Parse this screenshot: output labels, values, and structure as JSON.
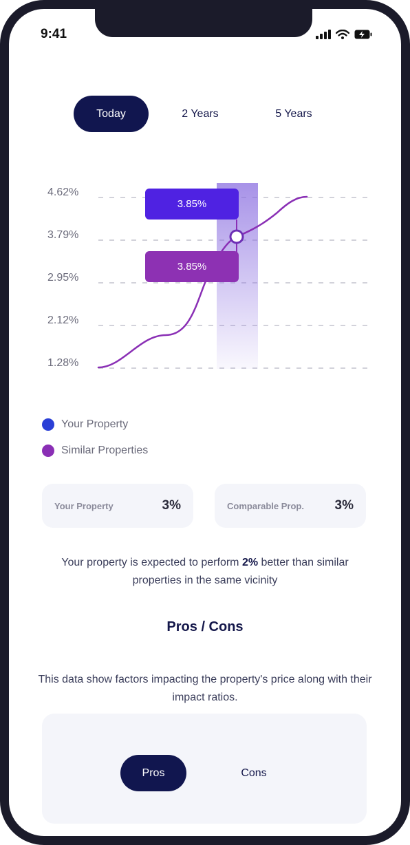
{
  "status_bar": {
    "time": "9:41",
    "icons": [
      "signal-icon",
      "wifi-icon",
      "battery-charging-icon"
    ]
  },
  "period_tabs": [
    {
      "label": "Today",
      "active": true
    },
    {
      "label": "2 Years",
      "active": false
    },
    {
      "label": "5 Years",
      "active": false
    }
  ],
  "chart_data": {
    "type": "line",
    "y_ticks": [
      "4.62%",
      "3.79%",
      "2.95%",
      "2.12%",
      "1.28%"
    ],
    "ylim": [
      1.28,
      4.62
    ],
    "grid": true,
    "highlight_tooltips": [
      {
        "value": "3.85%",
        "series": "Your Property"
      },
      {
        "value": "3.85%",
        "series": "Similar Properties"
      }
    ],
    "series": [
      {
        "name": "Similar Properties",
        "color": "#8a2fb5",
        "points": [
          [
            0,
            1.28
          ],
          [
            0.13,
            1.5
          ],
          [
            0.26,
            1.95
          ],
          [
            0.34,
            2.1
          ],
          [
            0.5,
            3.3
          ],
          [
            0.58,
            3.95
          ],
          [
            0.7,
            4.25
          ],
          [
            0.84,
            4.62
          ],
          [
            0.9,
            4.62
          ]
        ]
      }
    ],
    "legend": [
      {
        "label": "Your Property",
        "color": "#2a3fd6"
      },
      {
        "label": "Similar Properties",
        "color": "#8a2fb5"
      }
    ]
  },
  "comparison_cards": [
    {
      "label": "Your Property",
      "value": "3%"
    },
    {
      "label": "Comparable Prop.",
      "value": "3%"
    }
  ],
  "performance": {
    "prefix": "Your property is expected to perform ",
    "highlight": "2%",
    "suffix": " better than similar properties in the same vicinity"
  },
  "pros_cons": {
    "title": "Pros / Cons",
    "description": "This data show factors impacting the property's price along with their impact ratios.",
    "tabs": [
      {
        "label": "Pros",
        "active": true
      },
      {
        "label": "Cons",
        "active": false
      }
    ]
  }
}
